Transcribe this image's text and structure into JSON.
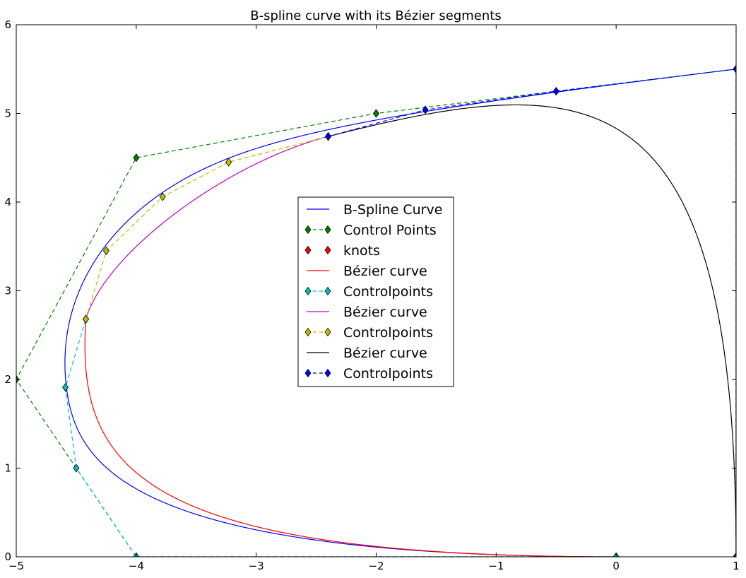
{
  "chart_data": {
    "type": "line",
    "title": "B-spline curve with its Bézier segments",
    "xlabel": "",
    "ylabel": "",
    "xlim": [
      -5,
      1
    ],
    "ylim": [
      0,
      6
    ],
    "xticks": [
      -5,
      -4,
      -3,
      -2,
      -1,
      0,
      1
    ],
    "yticks": [
      0,
      1,
      2,
      3,
      4,
      5,
      6
    ],
    "xtick_labels": [
      "−5",
      "−4",
      "−3",
      "−2",
      "−1",
      "0",
      "1"
    ],
    "ytick_labels": [
      "0",
      "1",
      "2",
      "3",
      "4",
      "5",
      "6"
    ],
    "grid": false,
    "legend_position": "center",
    "colors": {
      "blue": "#0000ff",
      "green": "#008000",
      "red": "#ff0000",
      "cyan": "#00bfbf",
      "magenta": "#bf00bf",
      "yellow": "#bfbf00",
      "black": "#000000"
    },
    "series": [
      {
        "name": "B-Spline Curve",
        "kind": "bspline",
        "color": "#0000ff",
        "style": "solid",
        "degree": 3,
        "control_points": [
          [
            0,
            0
          ],
          [
            -4,
            0
          ],
          [
            -5,
            2
          ],
          [
            -4,
            4.5
          ],
          [
            -2,
            5
          ],
          [
            1,
            5.5
          ],
          [
            1,
            0
          ]
        ],
        "knots": [
          0,
          0,
          0,
          0,
          0.33,
          0.67,
          1,
          1,
          1,
          1
        ]
      },
      {
        "name": "Control Points",
        "kind": "polyline",
        "color": "#008000",
        "style": "dashed",
        "marker": "diamond",
        "points": [
          [
            0,
            0
          ],
          [
            -4,
            0
          ],
          [
            -5,
            2
          ],
          [
            -4,
            4.5
          ],
          [
            -2,
            5
          ],
          [
            1,
            5.5
          ],
          [
            1,
            0
          ]
        ]
      },
      {
        "name": "knots",
        "kind": "markers",
        "color": "#ff0000",
        "marker": "diamond",
        "points": [
          [
            0,
            0
          ],
          [
            -4.42,
            2.68
          ],
          [
            -2.4,
            4.74
          ],
          [
            1,
            0
          ]
        ]
      },
      {
        "name": "Bézier curve",
        "kind": "bezier",
        "color": "#ff0000",
        "style": "solid",
        "control_points": [
          [
            0,
            0
          ],
          [
            -4,
            0
          ],
          [
            -4.5,
            1
          ],
          [
            -4.42,
            2.68
          ]
        ]
      },
      {
        "name": "Controlpoints",
        "kind": "polyline",
        "color": "#00bfbf",
        "style": "dashed",
        "marker": "diamond",
        "points": [
          [
            0,
            0
          ],
          [
            -4,
            0
          ],
          [
            -4.5,
            1
          ],
          [
            -4.59,
            1.91
          ],
          [
            -4.42,
            2.68
          ]
        ]
      },
      {
        "name": "Bézier curve",
        "kind": "bezier",
        "color": "#bf00bf",
        "style": "solid",
        "control_points": [
          [
            -4.42,
            2.68
          ],
          [
            -4.25,
            3.45
          ],
          [
            -3.23,
            4.45
          ],
          [
            -2.4,
            4.74
          ]
        ]
      },
      {
        "name": "Controlpoints",
        "kind": "polyline",
        "color": "#bfbf00",
        "style": "dashed",
        "marker": "diamond",
        "points": [
          [
            -4.42,
            2.68
          ],
          [
            -4.25,
            3.45
          ],
          [
            -3.78,
            4.06
          ],
          [
            -3.23,
            4.45
          ],
          [
            -2.4,
            4.74
          ]
        ]
      },
      {
        "name": "Bézier curve",
        "kind": "bezier",
        "color": "#000000",
        "style": "solid",
        "control_points": [
          [
            -2.4,
            4.74
          ],
          [
            -0.2,
            5.5
          ],
          [
            1,
            5.5
          ],
          [
            1,
            0
          ]
        ]
      },
      {
        "name": "Controlpoints",
        "kind": "polyline",
        "color": "#0000ff",
        "style": "dashed",
        "marker": "diamond",
        "points": [
          [
            -2.4,
            4.74
          ],
          [
            -1.59,
            5.04
          ],
          [
            -0.5,
            5.25
          ],
          [
            1,
            5.5
          ],
          [
            1,
            0
          ]
        ]
      }
    ]
  }
}
